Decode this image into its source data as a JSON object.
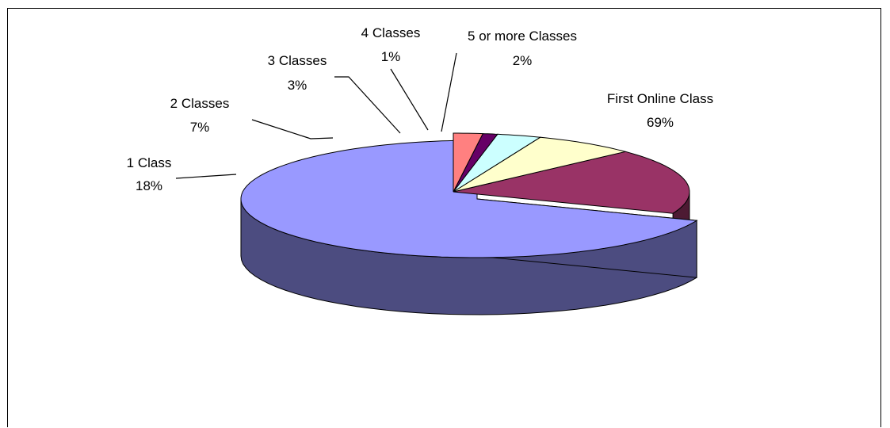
{
  "chart_data": {
    "type": "pie",
    "variant": "3d-exploded",
    "title": "",
    "slices": [
      {
        "label": "First Online Class",
        "value": 69,
        "value_label": "69%",
        "color": "#9999FF",
        "side_color": "#4C4C80"
      },
      {
        "label": "1 Class",
        "value": 18,
        "value_label": "18%",
        "color": "#993366",
        "side_color": "#4D1A33"
      },
      {
        "label": "2 Classes",
        "value": 7,
        "value_label": "7%",
        "color": "#FFFFCC",
        "side_color": "#808066"
      },
      {
        "label": "3 Classes",
        "value": 3,
        "value_label": "3%",
        "color": "#CCFFFF",
        "side_color": "#668080"
      },
      {
        "label": "4 Classes",
        "value": 1,
        "value_label": "1%",
        "color": "#660066",
        "side_color": "#330033"
      },
      {
        "label": "5 or more Classes",
        "value": 2,
        "value_label": "2%",
        "color": "#FF8080",
        "side_color": "#804040"
      }
    ]
  }
}
